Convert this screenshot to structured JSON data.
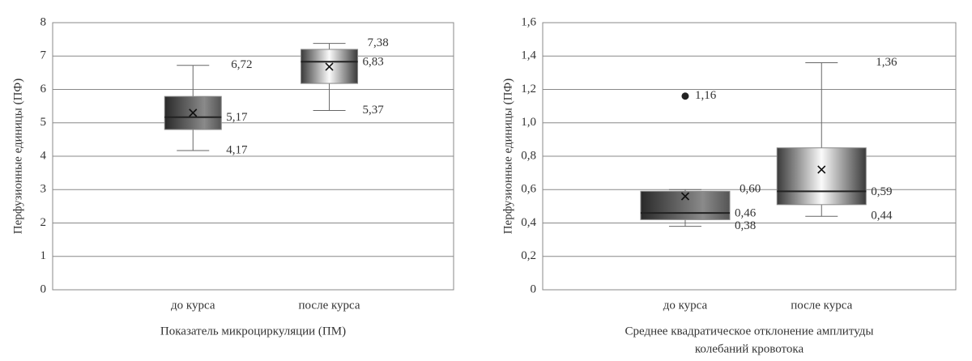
{
  "chart_data": [
    {
      "type": "box",
      "ylabel": "Перфузионные единицы (ПФ)",
      "xlabel": [
        "Показатель микроциркуляции (ПМ)"
      ],
      "categories": [
        "до курса",
        "после курса"
      ],
      "ylim": [
        0,
        8
      ],
      "yticks": [
        0,
        1,
        2,
        3,
        4,
        5,
        6,
        7,
        8
      ],
      "grid": true,
      "boxes": [
        {
          "whisker_high": 6.72,
          "q3": 5.79,
          "median": 5.17,
          "q1": 4.8,
          "whisker_low": 4.17,
          "mean": 5.3,
          "value_labels": {
            "whisker_high": "6,72",
            "median": "5,17",
            "whisker_low": "4,17"
          }
        },
        {
          "whisker_high": 7.38,
          "q3": 7.2,
          "median": 6.83,
          "q1": 6.18,
          "whisker_low": 5.37,
          "mean": 6.68,
          "value_labels": {
            "whisker_high": "7,38",
            "median": "6,83",
            "whisker_low": "5,37"
          }
        }
      ]
    },
    {
      "type": "box",
      "ylabel": "Перфузионные единицы (ПФ)",
      "xlabel": [
        "Среднее квадратическое отклонение амплитуды",
        "колебаний кровотока"
      ],
      "categories": [
        "до курса",
        "после курса"
      ],
      "ylim": [
        0,
        1.6
      ],
      "yticks": [
        0,
        {
          "value": 0.2,
          "label": "0,2"
        },
        {
          "value": 0.4,
          "label": "0,4"
        },
        {
          "value": 0.6,
          "label": "0,6"
        },
        {
          "value": 0.8,
          "label": "0,8"
        },
        {
          "value": 1.0,
          "label": "1,0"
        },
        {
          "value": 1.2,
          "label": "1,2"
        },
        {
          "value": 1.4,
          "label": "1,4"
        },
        {
          "value": 1.6,
          "label": "1,6"
        }
      ],
      "grid": true,
      "boxes": [
        {
          "whisker_high": 0.6,
          "q3": 0.59,
          "median": 0.46,
          "q1": 0.42,
          "whisker_low": 0.38,
          "mean": 0.56,
          "outliers": [
            1.16
          ],
          "value_labels": {
            "whisker_high": "0,60",
            "median": "0,46",
            "whisker_low": "0,38",
            "outliers": [
              "1,16"
            ]
          }
        },
        {
          "whisker_high": 1.36,
          "q3": 0.85,
          "median": 0.59,
          "q1": 0.51,
          "whisker_low": 0.44,
          "mean": 0.72,
          "value_labels": {
            "whisker_high": "1,36",
            "median": "0,59",
            "whisker_low": "0,44"
          }
        }
      ]
    }
  ]
}
